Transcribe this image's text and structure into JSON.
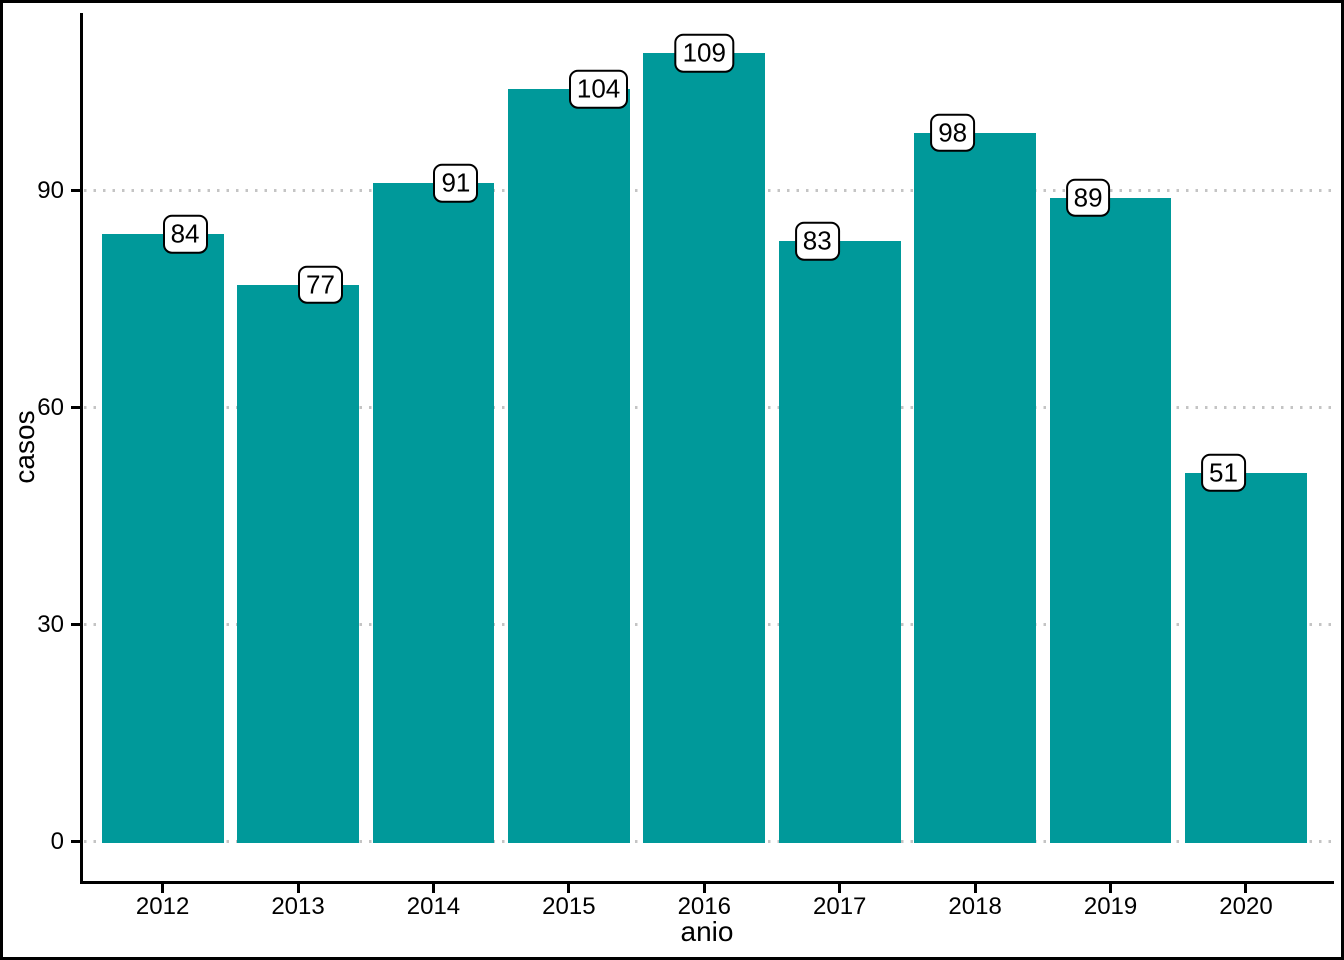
{
  "figure": {
    "background": "#ffffff",
    "frame_color": "#000000",
    "axis_color": "#000000",
    "text_color": "#000000"
  },
  "chart_data": {
    "type": "bar",
    "title": "",
    "xlabel": "anio",
    "ylabel": "casos",
    "categories": [
      "2012",
      "2013",
      "2014",
      "2015",
      "2016",
      "2017",
      "2018",
      "2019",
      "2020"
    ],
    "values": [
      84,
      77,
      91,
      104,
      109,
      83,
      98,
      89,
      51
    ],
    "yticks": [
      0,
      30,
      60,
      90
    ],
    "ylim": [
      -5.45,
      114.55
    ],
    "xlim": [
      0.39,
      9.65
    ],
    "bar_width_frac": 0.9,
    "bar_color": "#00999a",
    "grid": {
      "axis": "y",
      "style": "dotted",
      "color": "#c4c4c4"
    },
    "bar_labels_shown": true,
    "legend": "none"
  }
}
